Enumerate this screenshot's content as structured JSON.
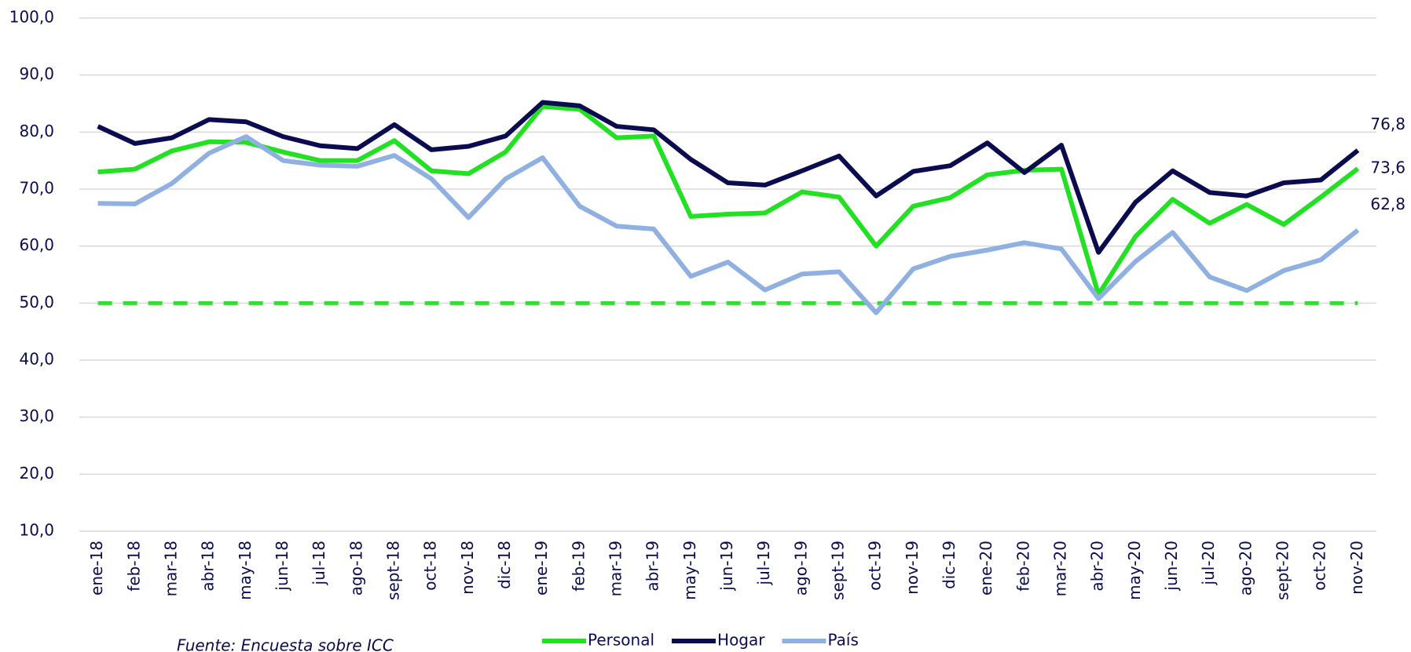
{
  "chart_data": {
    "type": "line",
    "categories": [
      "ene-18",
      "feb-18",
      "mar-18",
      "abr-18",
      "may-18",
      "jun-18",
      "jul-18",
      "ago-18",
      "sept-18",
      "oct-18",
      "nov-18",
      "dic-18",
      "ene-19",
      "feb-19",
      "mar-19",
      "abr-19",
      "may-19",
      "jun-19",
      "jul-19",
      "ago-19",
      "sept-19",
      "oct-19",
      "nov-19",
      "dic-19",
      "ene-20",
      "feb-20",
      "mar-20",
      "abr-20",
      "may-20",
      "jun-20",
      "jul-20",
      "ago-20",
      "sept-20",
      "oct-20",
      "nov-20"
    ],
    "series": [
      {
        "name": "Personal",
        "color": "#22e022",
        "values": [
          73,
          73.5,
          76.7,
          78.3,
          78.2,
          76.5,
          75,
          75,
          78.5,
          73.2,
          72.7,
          76.5,
          84.5,
          84,
          79,
          79.3,
          65.2,
          65.6,
          65.8,
          69.5,
          68.6,
          60,
          67,
          68.5,
          72.5,
          73.3,
          73.5,
          51.5,
          61.7,
          68.2,
          64,
          67.3,
          63.8,
          68.6,
          73.6
        ],
        "value_labels": {
          "34": "73,6"
        }
      },
      {
        "name": "Hogar",
        "color": "#0b0b4f",
        "values": [
          81,
          78,
          79,
          82.2,
          81.8,
          79.2,
          77.6,
          77.1,
          81.3,
          76.9,
          77.5,
          79.3,
          85.2,
          84.6,
          81,
          80.4,
          75.2,
          71.1,
          70.7,
          73.2,
          75.8,
          68.8,
          73.1,
          74.1,
          78.1,
          72.9,
          77.7,
          58.9,
          67.7,
          73.2,
          69.4,
          68.8,
          71.1,
          71.6,
          76.8
        ],
        "value_labels": {
          "34": "76,8"
        }
      },
      {
        "name": "País",
        "color": "#8fb0e0",
        "values": [
          67.5,
          67.4,
          71,
          76.3,
          79.2,
          75,
          74.2,
          74,
          75.9,
          71.8,
          65,
          71.8,
          75.5,
          67,
          63.5,
          63,
          54.7,
          57.2,
          52.3,
          55.1,
          55.5,
          48.3,
          56,
          58.2,
          59.3,
          60.6,
          59.5,
          50.8,
          57.3,
          62.4,
          54.6,
          52.2,
          55.7,
          57.6,
          62.8
        ],
        "value_labels": {
          "34": "62,8"
        }
      }
    ],
    "reference_line": {
      "value": 50,
      "color": "#33dd33",
      "dashed": true
    },
    "ylim": [
      10,
      100
    ],
    "yticks": [
      {
        "value": 10,
        "label": "10,0"
      },
      {
        "value": 20,
        "label": "20,0"
      },
      {
        "value": 30,
        "label": "30,0"
      },
      {
        "value": 40,
        "label": "40,0"
      },
      {
        "value": 50,
        "label": "50,0"
      },
      {
        "value": 60,
        "label": "60,0"
      },
      {
        "value": 70,
        "label": "70,0"
      },
      {
        "value": 80,
        "label": "80,0"
      },
      {
        "value": 90,
        "label": "90,0"
      },
      {
        "value": 100,
        "label": "100,0"
      }
    ],
    "grid": true,
    "legend": "bottom",
    "source": "Fuente: Encuesta sobre ICC"
  }
}
